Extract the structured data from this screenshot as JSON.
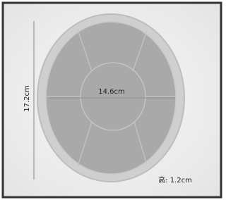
{
  "labels": {
    "height": "17.2cm",
    "width": "14.6cm",
    "thickness": "高: 1.2cm"
  }
}
